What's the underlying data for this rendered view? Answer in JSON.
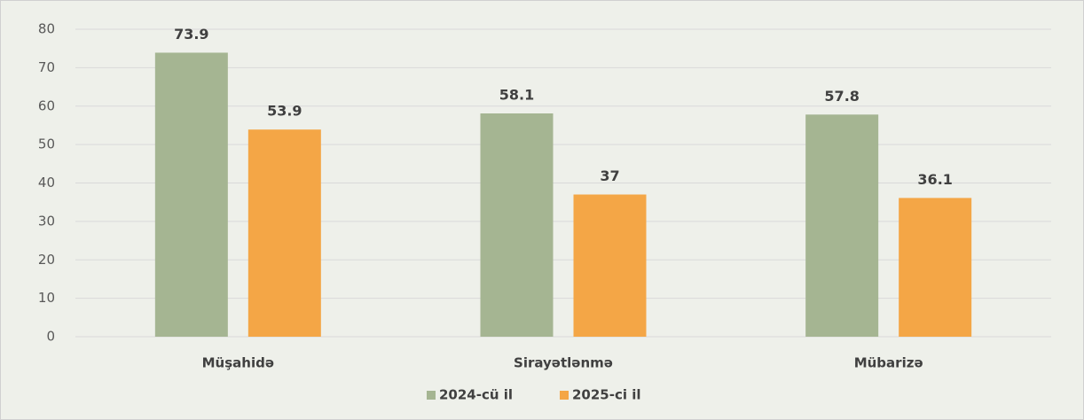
{
  "chart_data": {
    "type": "bar",
    "categories": [
      "Müşahidə",
      "Sirayətlənmə",
      "Mübarizə"
    ],
    "series": [
      {
        "name": "2024-cü il",
        "color": "#a5b592",
        "values": [
          73.9,
          58.1,
          57.8
        ]
      },
      {
        "name": "2025-ci il",
        "color": "#f4a646",
        "values": [
          53.9,
          37,
          36.1
        ]
      }
    ],
    "ylim": [
      0,
      80
    ],
    "yticks": [
      0,
      10,
      20,
      30,
      40,
      50,
      60,
      70,
      80
    ],
    "grid": true,
    "legend": "bottom"
  }
}
